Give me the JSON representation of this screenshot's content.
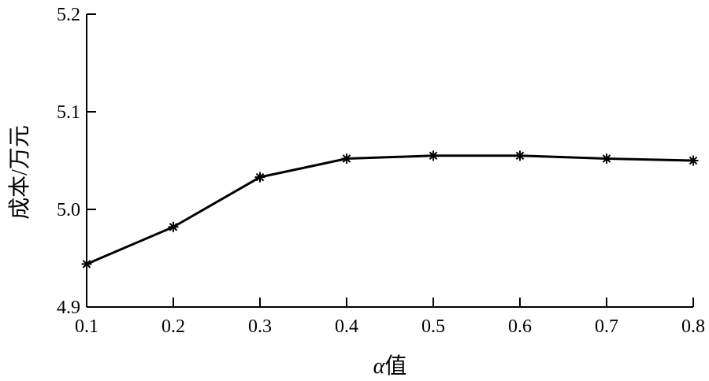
{
  "chart_data": {
    "type": "line",
    "title": "",
    "xlabel_italic": "α",
    "xlabel": "值",
    "ylabel": "成本/万元",
    "x": [
      0.1,
      0.2,
      0.3,
      0.4,
      0.5,
      0.6,
      0.7,
      0.8
    ],
    "x_tick_labels": [
      "0.1",
      "0.2",
      "0.3",
      "0.4",
      "0.5",
      "0.6",
      "0.7",
      "0.8"
    ],
    "xlim": [
      0.1,
      0.8
    ],
    "y_ticks": [
      4.9,
      5.0,
      5.1,
      5.2
    ],
    "y_tick_labels": [
      "4.9",
      "5.0",
      "5.1",
      "5.2"
    ],
    "ylim": [
      4.9,
      5.2
    ],
    "grid": false,
    "marker": "asterisk",
    "series": [
      {
        "values": [
          4.944,
          4.982,
          5.033,
          5.052,
          5.055,
          5.055,
          5.052,
          5.05
        ]
      }
    ],
    "colors": {
      "line": "#000000",
      "axis": "#000000",
      "background": "#ffffff"
    }
  }
}
